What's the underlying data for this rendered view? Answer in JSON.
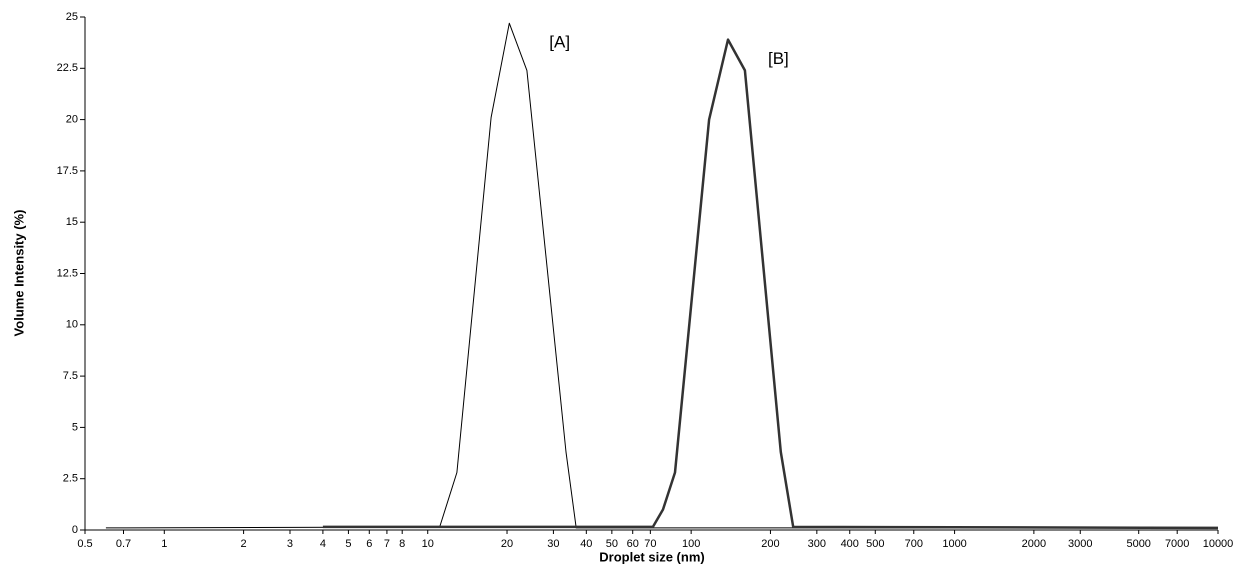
{
  "chart_data": {
    "type": "line",
    "xlabel": "Droplet size (nm)",
    "ylabel": "Volume Intensity (%)",
    "xscale": "log",
    "xlim": [
      0.5,
      10000
    ],
    "xticks": [
      0.5,
      0.7,
      1,
      2,
      3,
      4,
      5,
      6,
      7,
      8,
      10,
      20,
      30,
      40,
      50,
      60,
      70,
      100,
      200,
      300,
      400,
      500,
      700,
      1000,
      2000,
      3000,
      5000,
      7000,
      10000
    ],
    "ylim": [
      0,
      25
    ],
    "yticks": [
      0,
      2.5,
      5,
      7.5,
      10,
      12.5,
      15,
      17.5,
      20,
      22.5,
      25
    ],
    "grid": false,
    "series": [
      {
        "name": "[A]",
        "color": "#000000",
        "width": 1,
        "x": [
          0.6,
          11.1,
          12.9,
          17.4,
          20.4,
          23.8,
          33.5,
          36.6,
          10000
        ],
        "values": [
          0.1,
          0.15,
          2.8,
          20.1,
          24.7,
          22.4,
          3.8,
          0.1,
          0.1
        ]
      },
      {
        "name": "[B]",
        "color": "#333333",
        "width": 2.5,
        "x": [
          4,
          71.6,
          78.2,
          86.8,
          117,
          138,
          160,
          219,
          244,
          10000
        ],
        "values": [
          0.15,
          0.15,
          1,
          2.8,
          20,
          23.9,
          22.4,
          3.8,
          0.15,
          0.1
        ]
      }
    ]
  }
}
